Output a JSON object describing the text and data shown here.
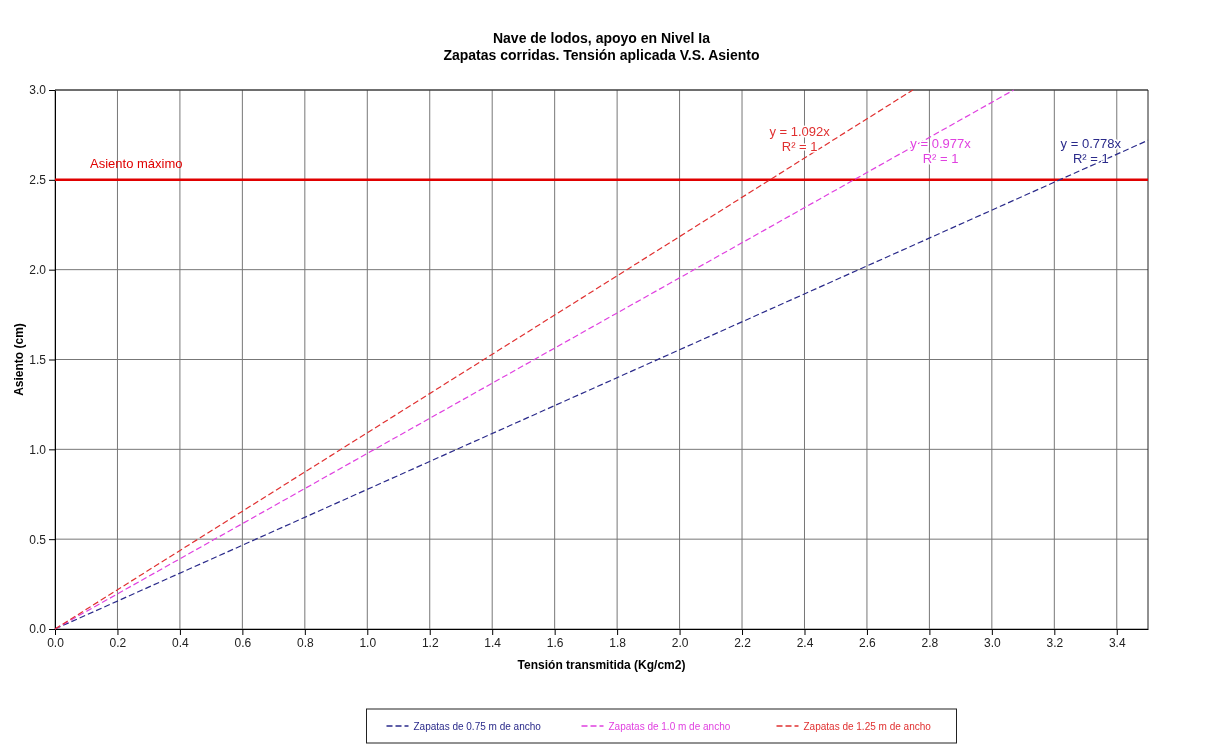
{
  "chart_data": {
    "type": "line",
    "title": "Nave de lodos, apoyo en Nivel Ia\nZapatas corridas. Tensión aplicada V.S. Asiento",
    "xlabel": "Tensión transmitida (Kg/cm2)",
    "ylabel": "Asiento (cm)",
    "xlim": [
      0,
      3.5
    ],
    "xticks": [
      {
        "value": 0,
        "label": "0.0"
      },
      0.2,
      0.4,
      0.6,
      0.8,
      {
        "value": 1,
        "label": "1.0"
      },
      1.2,
      1.4,
      1.6,
      1.8,
      {
        "value": 2,
        "label": "2.0"
      },
      2.2,
      2.4,
      2.6,
      2.8,
      {
        "value": 3,
        "label": "3.0"
      },
      3.2,
      3.4
    ],
    "ylim": [
      0,
      3
    ],
    "yticks": [
      {
        "value": 0,
        "label": "0.0"
      },
      0.5,
      {
        "value": 1,
        "label": "1.0"
      },
      1.5,
      {
        "value": 2,
        "label": "2.0"
      },
      2.5,
      {
        "value": 3,
        "label": "3.0"
      }
    ],
    "grid": true,
    "legend": "bottom",
    "line_style": "dashed",
    "series": [
      {
        "name": "Zapatas de 0.75 m de ancho",
        "color": "#2a2a8a",
        "x": [
          0,
          3.5
        ],
        "values": [
          0,
          2.72
        ]
      },
      {
        "name": "Zapatas de 1.0 m de ancho",
        "color": "#e040e0",
        "x": [
          0,
          3.07
        ],
        "values": [
          0,
          3.0
        ]
      },
      {
        "name": "Zapatas de 1.25 m de ancho",
        "color": "#e03030",
        "x": [
          0,
          2.747
        ],
        "values": [
          0,
          3.0
        ]
      }
    ],
    "ref_lines": [
      {
        "axis": "y",
        "value": 2.5,
        "label": "Asiento máximo",
        "color": "#e00000",
        "line_style": "solid"
      }
    ],
    "annotations": [
      "y = 1.092x\nR² = 1",
      "y = 0.977x\nR² = 1",
      "y = 0.778x\nR² = 1"
    ]
  }
}
